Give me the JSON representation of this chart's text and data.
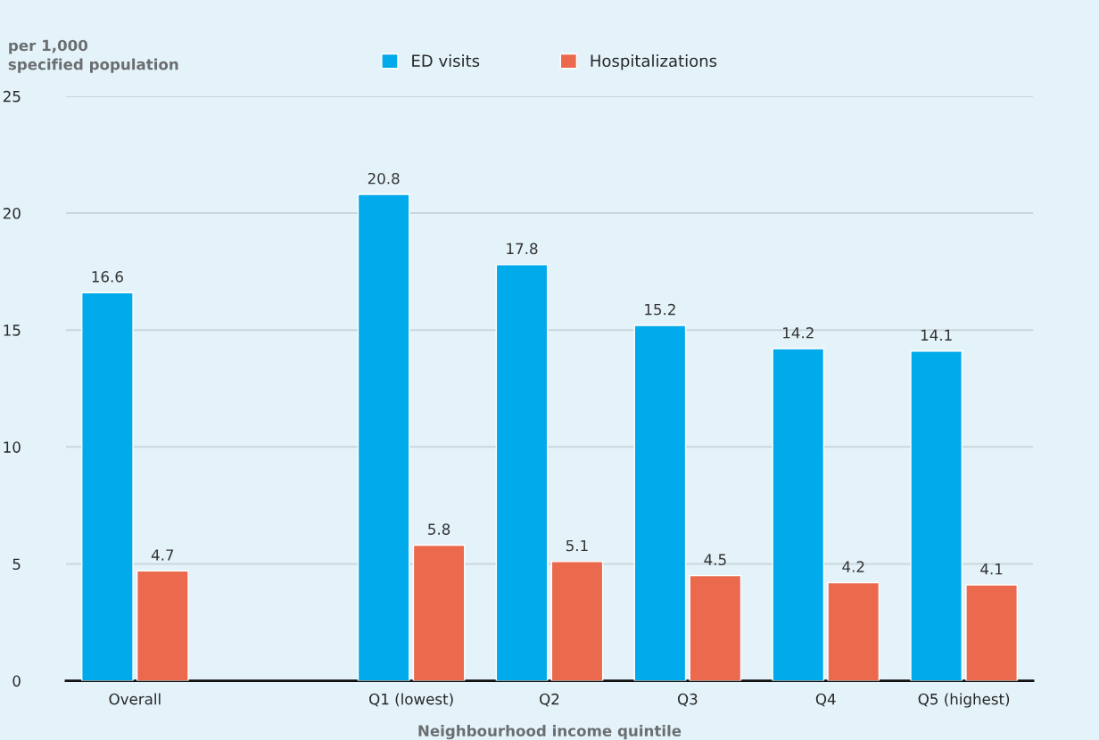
{
  "chart_data": {
    "type": "bar",
    "ylabel": "per 1,000\nspecified population",
    "xlabel": "Neighbourhood income quintile",
    "categories": [
      "Overall",
      null,
      "Q1 (lowest)",
      "Q2",
      "Q3",
      "Q4",
      "Q5 (highest)"
    ],
    "series": [
      {
        "name": "ED visits",
        "color": "#00aaeb",
        "values": [
          16.6,
          null,
          20.8,
          17.8,
          15.2,
          14.2,
          14.1
        ]
      },
      {
        "name": "Hospitalizations",
        "color": "#eb6a4e",
        "values": [
          4.7,
          null,
          5.8,
          5.1,
          4.5,
          4.2,
          4.1
        ]
      }
    ],
    "ylim": [
      0,
      25
    ],
    "yticks": [
      0,
      5,
      10,
      15,
      20,
      25
    ],
    "grid": "y",
    "legend": "top",
    "data_labels": true
  }
}
